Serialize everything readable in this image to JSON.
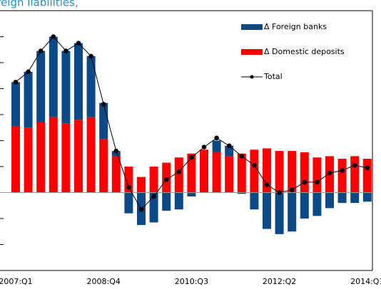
{
  "chart_data": {
    "type": "bar",
    "title": "Foreign liabilities,",
    "categories": [
      "2007:Q1",
      null,
      null,
      null,
      null,
      null,
      null,
      "2008:Q4",
      null,
      null,
      null,
      null,
      null,
      null,
      "2010:Q3",
      null,
      null,
      null,
      null,
      null,
      null,
      "2012:Q2",
      null,
      null,
      null,
      null,
      null,
      null,
      "2014:Q1"
    ],
    "series": [
      {
        "name": "Δ Foreign banks",
        "color": "#0b4a86",
        "values": [
          1.7,
          2.15,
          2.75,
          3.1,
          2.8,
          2.95,
          2.35,
          1.4,
          0.2,
          -0.8,
          -1.25,
          -1.15,
          -0.7,
          -0.65,
          -0.15,
          0,
          0.45,
          0.4,
          -0.05,
          -0.65,
          -1.4,
          -1.6,
          -1.5,
          -1.0,
          -0.9,
          -0.6,
          -0.4,
          -0.4,
          -0.35
        ]
      },
      {
        "name": "Δ Domestic deposits",
        "color": "#ff0000",
        "values": [
          2.55,
          2.5,
          2.7,
          2.9,
          2.65,
          2.8,
          2.9,
          2.05,
          1.4,
          1.0,
          0.6,
          1.0,
          1.15,
          1.35,
          1.5,
          1.65,
          1.55,
          1.4,
          1.5,
          1.65,
          1.7,
          1.6,
          1.6,
          1.55,
          1.35,
          1.4,
          1.3,
          1.4,
          1.3
        ]
      },
      {
        "name": "Total",
        "type": "line",
        "color": "#000000",
        "values": [
          4.25,
          4.65,
          5.45,
          6.0,
          5.45,
          5.75,
          5.25,
          3.4,
          1.6,
          0.2,
          -0.65,
          -0.15,
          0.5,
          0.8,
          1.35,
          1.75,
          2.1,
          1.8,
          1.4,
          1.05,
          0.3,
          0,
          0.1,
          0.4,
          0.4,
          0.75,
          0.85,
          1.05,
          0.95
        ]
      }
    ],
    "ylim": [
      -3,
      7
    ],
    "yticks": [
      -3,
      -2,
      -1,
      0,
      1,
      2,
      3,
      4,
      5,
      6,
      7
    ]
  }
}
